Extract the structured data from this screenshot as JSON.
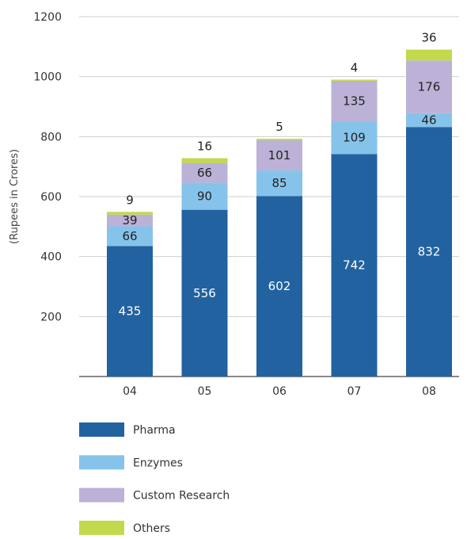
{
  "chart_data": {
    "type": "bar",
    "stacked": true,
    "categories": [
      "04",
      "05",
      "06",
      "07",
      "08"
    ],
    "ylabel": "(Rupees in Crores)",
    "ylim": [
      0,
      1200
    ],
    "yticks": [
      200,
      400,
      600,
      800,
      1000,
      1200
    ],
    "grid": true,
    "legend_placement": "bottom-left",
    "series": [
      {
        "name": "Pharma",
        "color": "#2262a0",
        "values": [
          435,
          556,
          602,
          742,
          832
        ]
      },
      {
        "name": "Enzymes",
        "color": "#86c3ea",
        "values": [
          66,
          90,
          85,
          109,
          46
        ]
      },
      {
        "name": "Custom Research",
        "color": "#bcb1d6",
        "values": [
          39,
          66,
          101,
          135,
          176
        ]
      },
      {
        "name": "Others",
        "color": "#c3d94c",
        "values": [
          9,
          16,
          5,
          4,
          36
        ]
      }
    ]
  }
}
